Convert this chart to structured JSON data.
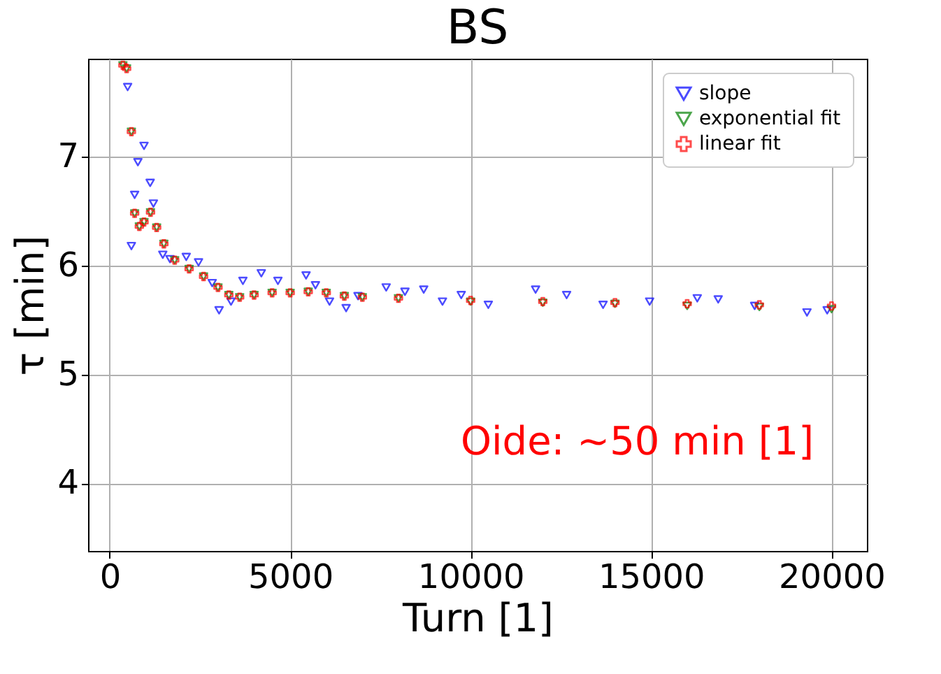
{
  "chart_data": {
    "type": "scatter",
    "title": "BS",
    "xlabel": "Turn [1]",
    "ylabel": "τ [min]",
    "xlim": [
      -600,
      20980
    ],
    "ylim": [
      3.38,
      7.9
    ],
    "xticks": [
      0,
      5000,
      10000,
      15000,
      20000
    ],
    "yticks": [
      4,
      5,
      6,
      7
    ],
    "grid": true,
    "legend": "top right",
    "annotations": [
      "Oide: ~50 min [1]"
    ],
    "series": [
      {
        "name": "slope",
        "color": "#0000ff",
        "marker": "triangle",
        "x": [
          496,
          600,
          690,
          780,
          950,
          1120,
          1210,
          1470,
          1670,
          2120,
          2460,
          2840,
          3030,
          3360,
          3690,
          4200,
          4660,
          5440,
          5700,
          6090,
          6550,
          6880,
          7660,
          8180,
          8700,
          9220,
          9740,
          10490,
          11800,
          12660,
          13670,
          14960,
          16280,
          16860,
          17870,
          19320,
          19880
        ],
        "values": [
          7.64,
          6.18,
          6.65,
          6.95,
          7.1,
          6.76,
          6.57,
          6.1,
          6.06,
          6.08,
          6.03,
          5.84,
          5.59,
          5.67,
          5.86,
          5.93,
          5.86,
          5.91,
          5.82,
          5.67,
          5.61,
          5.72,
          5.8,
          5.76,
          5.78,
          5.67,
          5.73,
          5.64,
          5.78,
          5.73,
          5.64,
          5.67,
          5.7,
          5.69,
          5.63,
          5.57,
          5.59
        ]
      },
      {
        "name": "exponential fit",
        "color": "#008000",
        "marker": "triangle",
        "x": [
          365,
          468,
          600,
          690,
          820,
          950,
          1130,
          1300,
          1500,
          1800,
          2200,
          2600,
          3000,
          3300,
          3600,
          4000,
          4500,
          5000,
          5500,
          6000,
          6500,
          7000,
          8000,
          10000,
          12000,
          14000,
          16000,
          18000,
          20000
        ],
        "values": [
          7.84,
          7.81,
          7.23,
          6.48,
          6.36,
          6.4,
          6.49,
          6.35,
          6.2,
          6.05,
          5.97,
          5.9,
          5.8,
          5.73,
          5.71,
          5.73,
          5.75,
          5.75,
          5.76,
          5.75,
          5.72,
          5.71,
          5.7,
          5.67,
          5.66,
          5.65,
          5.63,
          5.62,
          5.6
        ]
      },
      {
        "name": "linear fit",
        "color": "#ff0000",
        "marker": "cross",
        "x": [
          365,
          468,
          600,
          690,
          820,
          950,
          1130,
          1300,
          1500,
          1800,
          2200,
          2600,
          3000,
          3300,
          3600,
          4000,
          4500,
          5000,
          5500,
          6000,
          6500,
          7000,
          8000,
          10000,
          12000,
          14000,
          16000,
          18000,
          20000
        ],
        "values": [
          7.84,
          7.81,
          7.23,
          6.48,
          6.36,
          6.4,
          6.49,
          6.35,
          6.2,
          6.05,
          5.97,
          5.9,
          5.8,
          5.73,
          5.71,
          5.73,
          5.75,
          5.75,
          5.76,
          5.75,
          5.72,
          5.71,
          5.7,
          5.68,
          5.67,
          5.66,
          5.65,
          5.64,
          5.63
        ]
      }
    ]
  }
}
